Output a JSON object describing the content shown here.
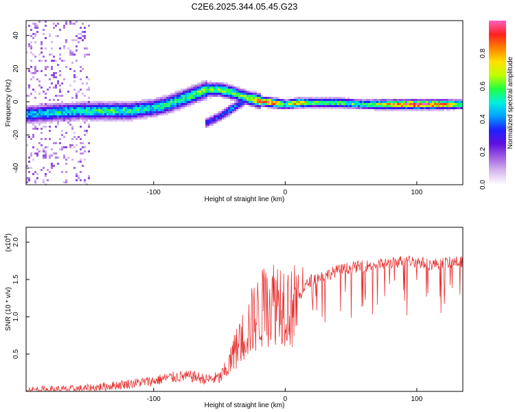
{
  "title": "C2E6.2025.344.05.45.G23",
  "colors": {
    "snr_line": "#e83030",
    "axis": "#000000"
  },
  "chart_data": [
    {
      "type": "heatmap",
      "name": "spectrogram",
      "xlabel": "Height of straight line (km)",
      "ylabel": "Frequency (Hz)",
      "xlim": [
        -197,
        135
      ],
      "ylim": [
        -50,
        49
      ],
      "xticks": [
        -100,
        0,
        100
      ],
      "xtick_labels": [
        "-100",
        "0",
        "100"
      ],
      "yticks": [
        -40,
        -20,
        0,
        20,
        40
      ],
      "ytick_labels": [
        "-40",
        "-20",
        "0",
        "20",
        "40"
      ],
      "colorbar": {
        "label": "Normalized spectral amplitude",
        "range": [
          0,
          1
        ],
        "ticks": [
          0.0,
          0.2,
          0.4,
          0.6,
          0.8
        ],
        "tick_labels": [
          "0.0",
          "0.2",
          "0.4",
          "0.6",
          "0.8"
        ],
        "colormap": [
          "#ffffff",
          "#d8b8f0",
          "#a060e0",
          "#6010e0",
          "#2020ff",
          "#00a0ff",
          "#00f0e0",
          "#20ff40",
          "#c0ff00",
          "#ffe000",
          "#ff8000",
          "#ff2020",
          "#ff60c0"
        ]
      },
      "ridge": {
        "x": [
          -195,
          -180,
          -160,
          -140,
          -120,
          -100,
          -90,
          -80,
          -70,
          -60,
          -50,
          -40,
          -30,
          -20,
          -10,
          0,
          10,
          20,
          40,
          60,
          80,
          100,
          120,
          135
        ],
        "freq": [
          -7,
          -6,
          -5,
          -5,
          -5,
          -3,
          -1,
          2,
          5,
          8,
          8,
          6,
          3,
          1,
          0,
          -1,
          0,
          0,
          0,
          -1,
          -1,
          -1,
          -1,
          -1
        ],
        "amp": [
          0.45,
          0.5,
          0.5,
          0.55,
          0.55,
          0.5,
          0.55,
          0.55,
          0.6,
          0.6,
          0.6,
          0.6,
          0.65,
          0.85,
          0.95,
          0.6,
          0.85,
          0.6,
          0.6,
          0.55,
          0.85,
          0.95,
          0.85,
          0.6
        ]
      },
      "branch": {
        "x": [
          -60,
          -50,
          -40,
          -30
        ],
        "freq": [
          -12,
          -8,
          -3,
          2
        ],
        "amp": [
          0.3,
          0.35,
          0.4,
          0.3
        ]
      }
    },
    {
      "type": "line",
      "name": "snr",
      "xlabel": "Height of straight line (km)",
      "ylabel": "SNR (10 * v/v)",
      "multiplier_label": "(x10",
      "multiplier_exp": "4",
      "xlim": [
        -197,
        135
      ],
      "ylim": [
        0.0,
        2.2
      ],
      "xticks": [
        -100,
        0,
        100
      ],
      "xtick_labels": [
        "-100",
        "0",
        "100"
      ],
      "yticks": [
        0.5,
        1.0,
        1.5,
        2.0
      ],
      "ytick_labels": [
        "0.5",
        "1.0",
        "1.5",
        "2.0"
      ],
      "x": [
        -197,
        -180,
        -160,
        -150,
        -140,
        -130,
        -120,
        -100,
        -90,
        -80,
        -70,
        -60,
        -50,
        -45,
        -40,
        -35,
        -30,
        -25,
        -20,
        -15,
        -10,
        -5,
        0,
        5,
        10,
        15,
        20,
        30,
        40,
        50,
        60,
        70,
        80,
        90,
        100,
        110,
        120,
        135
      ],
      "y": [
        0.02,
        0.02,
        0.03,
        0.04,
        0.06,
        0.08,
        0.1,
        0.14,
        0.18,
        0.2,
        0.2,
        0.16,
        0.18,
        0.28,
        0.45,
        0.65,
        0.8,
        0.95,
        1.05,
        1.15,
        1.2,
        1.25,
        1.2,
        1.1,
        1.25,
        1.4,
        1.5,
        1.55,
        1.62,
        1.66,
        1.68,
        1.7,
        1.72,
        1.75,
        1.74,
        1.7,
        1.72,
        1.74
      ]
    }
  ]
}
